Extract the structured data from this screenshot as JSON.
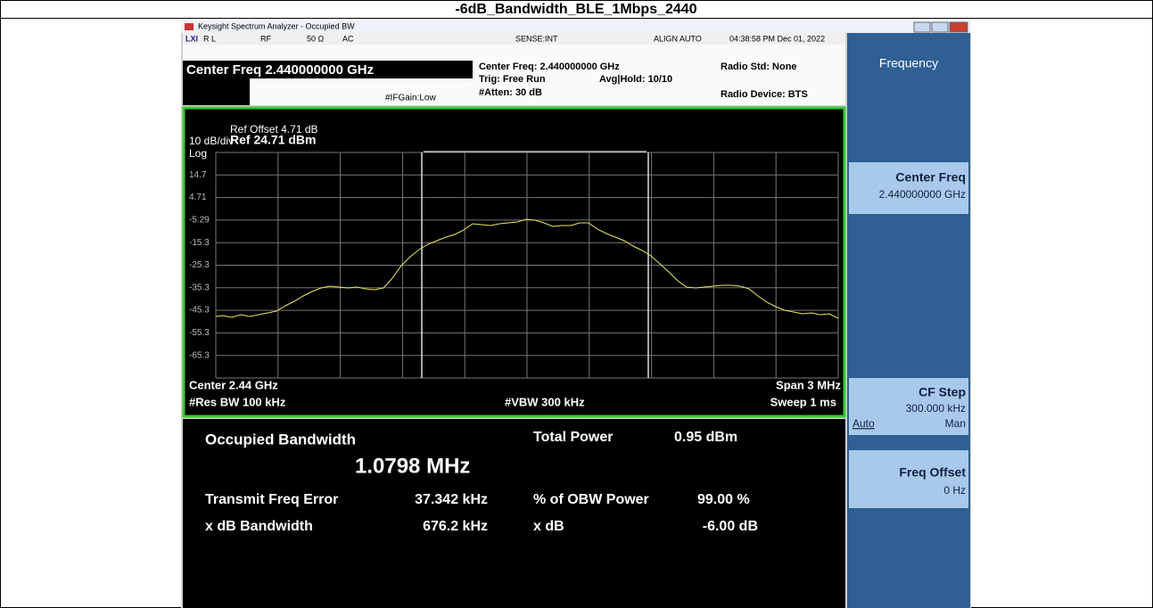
{
  "page_title": "-6dB_Bandwidth_BLE_1Mbps_2440",
  "window": {
    "title": "Keysight Spectrum Analyzer - Occupied BW"
  },
  "status": {
    "rl": "R L",
    "rf": "RF",
    "impedance": "50 Ω",
    "coupling": "AC",
    "sense": "SENSE:INT",
    "align": "ALIGN AUTO",
    "datetime": "04:38:58 PM Dec 01, 2022"
  },
  "header": {
    "center_freq": "Center Freq 2.440000000 GHz",
    "if_gain": "#IFGain:Low",
    "center_freq_info": "Center Freq: 2.440000000 GHz",
    "trig": "Trig: Free Run",
    "avg_hold": "Avg|Hold: 10/10",
    "atten": "#Atten: 30 dB",
    "radio_std": "Radio Std: None",
    "radio_device": "Radio Device: BTS"
  },
  "graph": {
    "ref_offset": "Ref Offset 4.71 dB",
    "scale": "10 dB/div",
    "ref_level": "Ref 24.71 dBm",
    "log": "Log",
    "y_labels": [
      "14.7",
      "4.71",
      "-5.29",
      "-15.3",
      "-25.3",
      "-35.3",
      "-45.3",
      "-55.3",
      "-65.3"
    ],
    "center": "Center 2.44 GHz",
    "span": "Span 3 MHz",
    "res_bw": "#Res BW 100 kHz",
    "vbw": "#VBW 300 kHz",
    "sweep": "Sweep 1 ms"
  },
  "results": {
    "obw_label": "Occupied Bandwidth",
    "obw_value": "1.0798 MHz",
    "total_power_label": "Total Power",
    "total_power_value": "0.95 dBm",
    "tfe_label": "Transmit Freq Error",
    "tfe_value": "37.342 kHz",
    "obw_power_label": "% of OBW Power",
    "obw_power_value": "99.00 %",
    "xdb_bw_label": "x dB Bandwidth",
    "xdb_bw_value": "676.2 kHz",
    "xdb_label": "x dB",
    "xdb_value": "-6.00 dB"
  },
  "softkeys": {
    "menu_title": "Frequency",
    "center_freq_label": "Center Freq",
    "center_freq_value": "2.440000000 GHz",
    "cf_step_label": "CF Step",
    "cf_step_value": "300.000 kHz",
    "auto": "Auto",
    "man": "Man",
    "freq_offset_label": "Freq Offset",
    "freq_offset_value": "0 Hz"
  }
}
